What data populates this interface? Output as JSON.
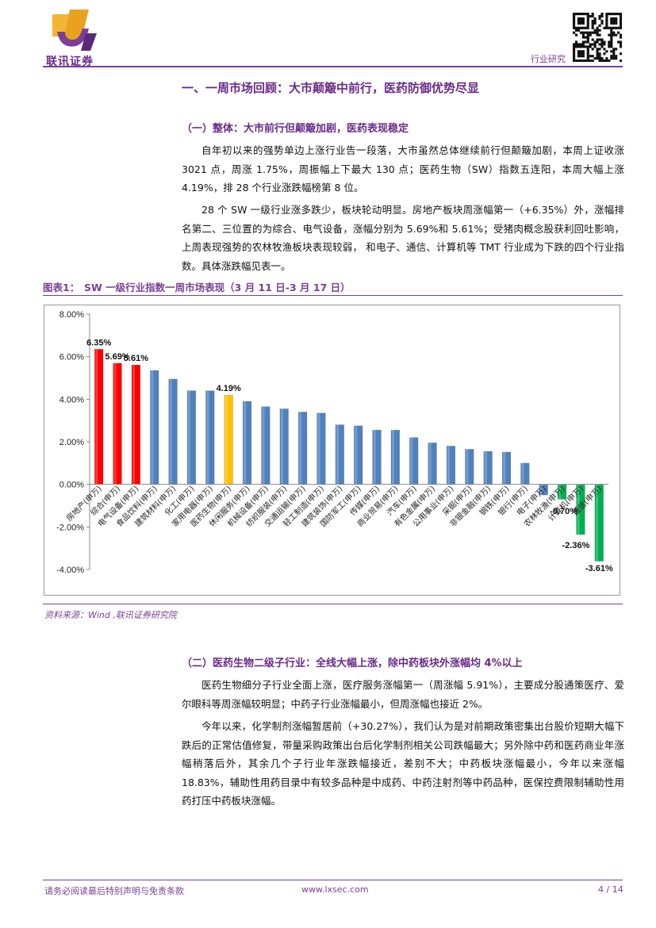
{
  "header": {
    "logo_text": "联讯证券",
    "right_label": "行业研究"
  },
  "section1": {
    "title": "一、一周市场回顾：大市颠簸中前行，医药防御优势尽显",
    "sub1": {
      "title": "（一）整体：大市前行但颠簸加剧，医药表现稳定",
      "p1": "自年初以来的强势单边上涨行业告一段落，大市虽然总体继续前行但颠簸加剧，本周上证收涨 3021 点，周涨 1.75%，周振幅上下最大 130 点；医药生物（SW）指数五连阳，本周大幅上涨 4.19%，排 28 个行业涨跌幅榜第 8 位。",
      "p2": "28 个 SW 一级行业涨多跌少，板块轮动明显。房地产板块周涨幅第一（+6.35%）外，涨幅排名第二、三位置的为综合、电气设备，涨幅分别为 5.69%和 5.61%；受猪肉概念股获利回吐影响，上周表现强势的农林牧渔板块表现较弱， 和电子、通信、计算机等 TMT 行业成为下跌的四个行业指数。具体涨跌幅见表一。"
    }
  },
  "figure": {
    "label": "图表1：",
    "title": "SW 一级行业指数一周市场表现（3 月 11 日-3 月 17 日）",
    "source": "资料来源：Wind ,联讯证券研究院"
  },
  "chart_data": {
    "type": "bar",
    "categories": [
      "房地产(申万)",
      "综合(申万)",
      "电气设备(申万)",
      "食品饮料(申万)",
      "建筑材料(申万)",
      "化工(申万)",
      "家用电器(申万)",
      "医药生物(申万)",
      "休闲服务(申万)",
      "机械设备(申万)",
      "纺织服装(申万)",
      "交通运输(申万)",
      "轻工制造(申万)",
      "建筑装饰(申万)",
      "国防军工(申万)",
      "传媒(申万)",
      "商业贸易(申万)",
      "汽车(申万)",
      "有色金属(申万)",
      "公用事业(申万)",
      "采掘(申万)",
      "非银金融(申万)",
      "钢铁(申万)",
      "银行(申万)",
      "电子(申万)",
      "农林牧渔(申万)",
      "计算机(申万)",
      "通信(申万)"
    ],
    "values": [
      6.35,
      5.69,
      5.61,
      5.35,
      4.95,
      4.4,
      4.4,
      4.19,
      3.9,
      3.65,
      3.55,
      3.4,
      3.35,
      2.8,
      2.75,
      2.55,
      2.55,
      2.2,
      1.95,
      1.8,
      1.65,
      1.55,
      1.52,
      1.0,
      -0.5,
      -0.7,
      -2.36,
      -3.61
    ],
    "colors": [
      "#ff0000",
      "#ff0000",
      "#ff0000",
      "#4f81bd",
      "#4f81bd",
      "#4f81bd",
      "#4f81bd",
      "#ffc000",
      "#4f81bd",
      "#4f81bd",
      "#4f81bd",
      "#4f81bd",
      "#4f81bd",
      "#4f81bd",
      "#4f81bd",
      "#4f81bd",
      "#4f81bd",
      "#4f81bd",
      "#4f81bd",
      "#4f81bd",
      "#4f81bd",
      "#4f81bd",
      "#4f81bd",
      "#4f81bd",
      "#4f81bd",
      "#00b050",
      "#00b050",
      "#00b050"
    ],
    "data_labels": [
      {
        "index": 0,
        "text": "6.35%"
      },
      {
        "index": 1,
        "text": "5.69%"
      },
      {
        "index": 2,
        "text": "5.61%"
      },
      {
        "index": 7,
        "text": "4.19%"
      },
      {
        "index": 25,
        "text": "-0.70%"
      },
      {
        "index": 26,
        "text": "-2.36%"
      },
      {
        "index": 27,
        "text": "-3.61%"
      }
    ],
    "ylim": [
      -4,
      8
    ],
    "yticks": [
      "8.00%",
      "6.00%",
      "4.00%",
      "2.00%",
      "0.00%",
      "-2.00%",
      "-4.00%"
    ],
    "ytick_values": [
      8,
      6,
      4,
      2,
      0,
      -2,
      -4
    ],
    "grid": false,
    "legend": "none"
  },
  "section2": {
    "title": "（二）医药生物二级子行业：全线大幅上涨，除中药板块外涨幅均 4%以上",
    "p1": "医药生物细分子行业全面上涨，医疗服务涨幅第一（周涨幅 5.91%），主要成分股通策医疗、爱尔眼科等周涨幅较明显；中药子行业涨幅最小，但周涨幅也接近 2%。",
    "p2": "今年以来，化学制剂涨幅暂居前（+30.27%），我们认为是对前期政策密集出台股价短期大幅下跌后的正常估值修复，带量采购政策出台后化学制剂相关公司跌幅最大；另外除中药和医药商业年涨幅稍落后外，其余几个子行业年涨跌幅接近，差别不大；中药板块涨幅最小，今年以来涨幅 18.83%，辅助性用药目录中有较多品种是中成药、中药注射剂等中药品种，医保控费限制辅助性用药打压中药板块涨幅。"
  },
  "footer": {
    "disclaimer": "请务必阅读最后特别声明与免责条款",
    "website": "www.lxsec.com",
    "page": "4 / 14"
  }
}
